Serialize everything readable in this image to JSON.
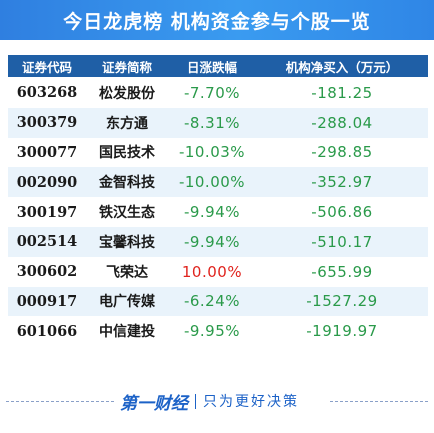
{
  "title": "今日龙虎榜  机构资金参与个股一览",
  "header": {
    "code": "证券代码",
    "name": "证券简称",
    "change": "日涨跌幅",
    "net_buy": "机构净买入（万元）"
  },
  "colors": {
    "up": "#e0241e",
    "down": "#2a9a4a",
    "header_bg": "#1f5fa6",
    "title_bg": "#3a9bf0"
  },
  "rows": [
    {
      "code": "603268",
      "name": "松发股份",
      "change": "-7.70%",
      "net_buy": "-181.25",
      "direction": "down"
    },
    {
      "code": "300379",
      "name": "东方通",
      "change": "-8.31%",
      "net_buy": "-288.04",
      "direction": "down"
    },
    {
      "code": "300077",
      "name": "国民技术",
      "change": "-10.03%",
      "net_buy": "-298.85",
      "direction": "down"
    },
    {
      "code": "002090",
      "name": "金智科技",
      "change": "-10.00%",
      "net_buy": "-352.97",
      "direction": "down"
    },
    {
      "code": "300197",
      "name": "铁汉生态",
      "change": "-9.94%",
      "net_buy": "-506.86",
      "direction": "down"
    },
    {
      "code": "002514",
      "name": "宝馨科技",
      "change": "-9.94%",
      "net_buy": "-510.17",
      "direction": "down"
    },
    {
      "code": "300602",
      "name": "飞荣达",
      "change": "10.00%",
      "net_buy": "-655.99",
      "direction": "up"
    },
    {
      "code": "000917",
      "name": "电广传媒",
      "change": "-6.24%",
      "net_buy": "-1527.29",
      "direction": "down"
    },
    {
      "code": "601066",
      "name": "中信建投",
      "change": "-9.95%",
      "net_buy": "-1919.97",
      "direction": "down"
    }
  ],
  "footer": {
    "logo": "第一财经",
    "slogan": "只为更好决策"
  }
}
